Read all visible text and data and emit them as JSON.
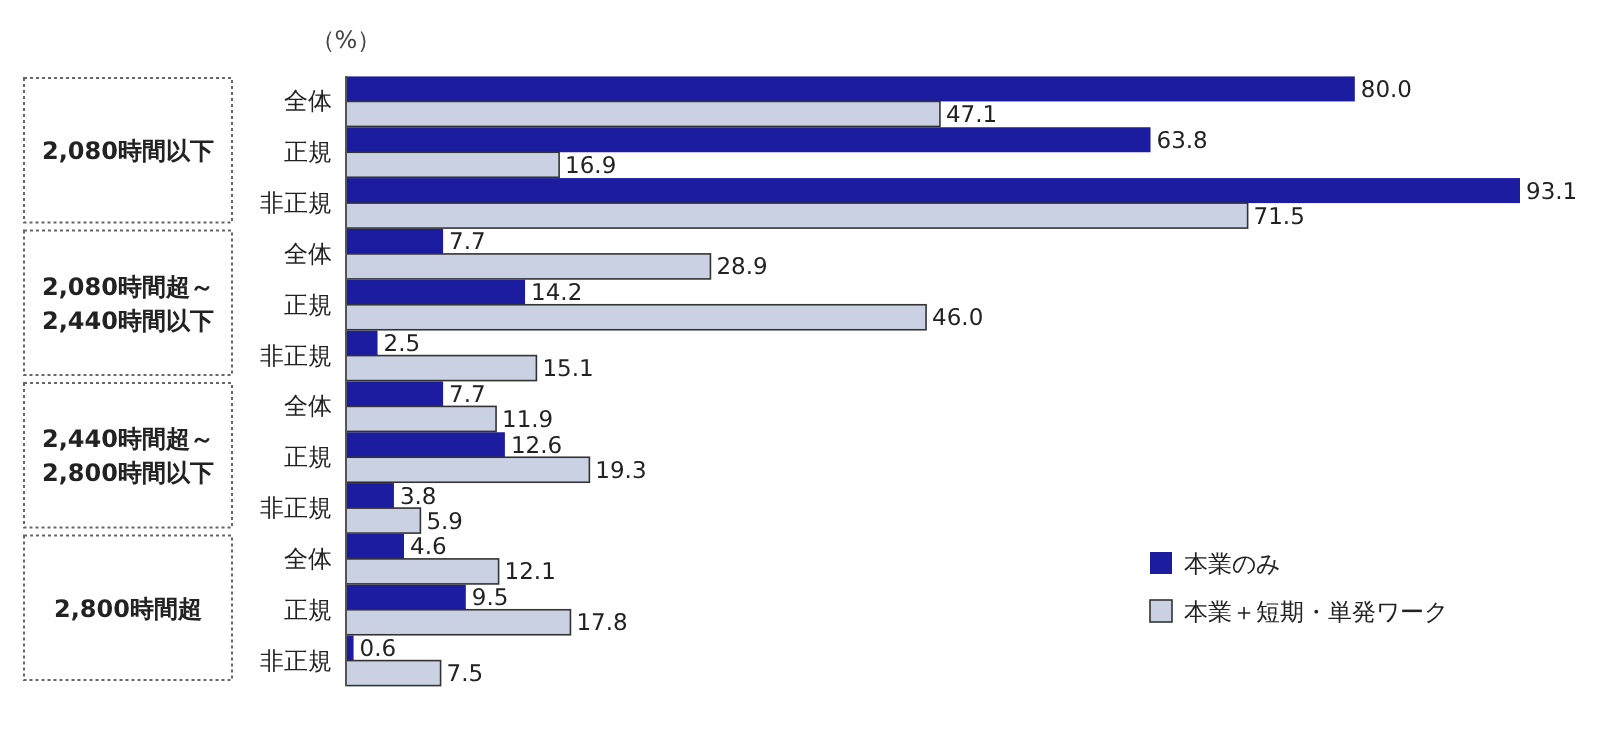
{
  "chart_data": {
    "type": "bar",
    "orientation": "horizontal",
    "xlabel": "（%）",
    "categories": [
      "全体",
      "正規",
      "非正規",
      "全体",
      "正規",
      "非正規",
      "全体",
      "正規",
      "非正規",
      "全体",
      "正規",
      "非正規"
    ],
    "annotations": [
      "2,080時間以下",
      "2,080時間超～\n2,440時間以下",
      "2,440時間超～\n2,800時間以下",
      "2,800時間超"
    ],
    "series": [
      {
        "name": "本業のみ",
        "color": "#1c1ca0",
        "values": [
          80.0,
          63.8,
          93.1,
          7.7,
          14.2,
          2.5,
          7.7,
          12.6,
          3.8,
          4.6,
          9.5,
          0.6
        ],
        "value_labels": [
          "80.0",
          "63.8",
          "93.1",
          "7.7",
          "14.2",
          "2.5",
          "7.7",
          "12.6",
          "3.8",
          "4.6",
          "9.5",
          "0.6"
        ]
      },
      {
        "name": "本業＋短期・単発ワーク",
        "color": "#c9d1e3",
        "values": [
          47.1,
          16.9,
          71.5,
          28.9,
          46.0,
          15.1,
          11.9,
          19.3,
          5.9,
          12.1,
          17.8,
          7.5
        ],
        "value_labels": [
          "47.1",
          "16.9",
          "71.5",
          "28.9",
          "46.0",
          "15.1",
          "11.9",
          "19.3",
          "5.9",
          "12.1",
          "17.8",
          "7.5"
        ]
      }
    ],
    "legend": "bottom right"
  }
}
